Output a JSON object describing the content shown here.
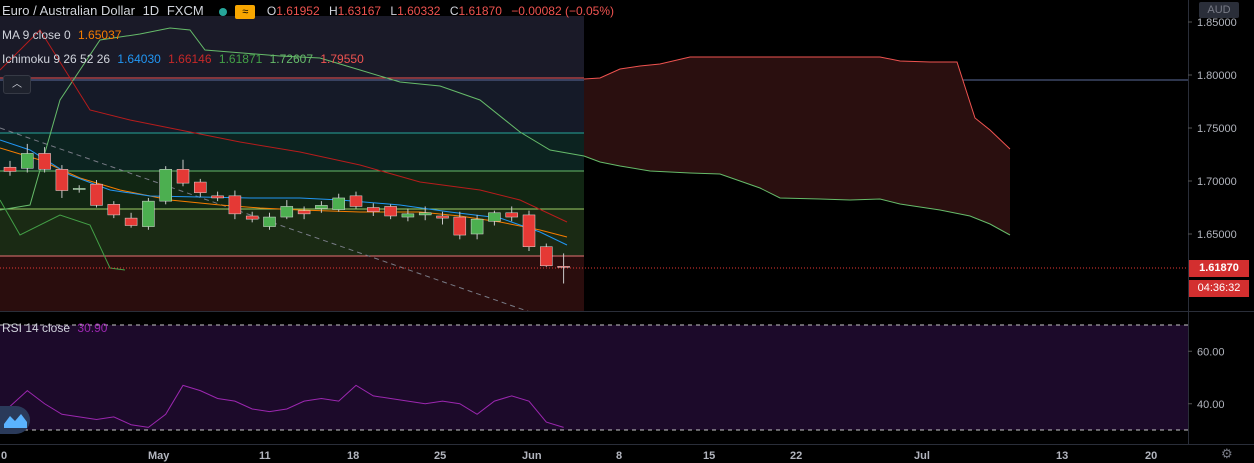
{
  "header": {
    "symbol": "Euro / Australian Dollar",
    "interval": "1D",
    "exchange": "FXCM",
    "ohlc": {
      "o_label": "O",
      "o": "1.61952",
      "h_label": "H",
      "h": "1.63167",
      "l_label": "L",
      "l": "1.60332",
      "c_label": "C",
      "c": "1.61870",
      "change": "−0.00082 (−0.05%)"
    }
  },
  "indicators": {
    "ma": {
      "label": "MA 9 close 0",
      "value": "1.65037",
      "color": "#f57c00"
    },
    "ichimoku": {
      "label": "Ichimoku 9 26 52 26",
      "values": [
        {
          "v": "1.64030",
          "color": "#2196f3"
        },
        {
          "v": "1.66146",
          "color": "#b71c1c"
        },
        {
          "v": "1.61871",
          "color": "#43a047"
        },
        {
          "v": "1.72607",
          "color": "#66bb6a"
        },
        {
          "v": "1.79550",
          "color": "#ef5350"
        }
      ]
    },
    "rsi": {
      "label": "RSI 14 close",
      "value": "30.90",
      "color": "#9c27b0"
    }
  },
  "price_axis": {
    "currency": "AUD",
    "labels": [
      "1.85000",
      "1.80000",
      "1.75000",
      "1.70000",
      "1.65000"
    ],
    "last_price": "1.61870",
    "countdown": "04:36:32"
  },
  "rsi_axis": {
    "labels": [
      "60.00",
      "40.00"
    ]
  },
  "time_axis": {
    "labels": [
      "0",
      "May",
      "11",
      "18",
      "25",
      "Jun",
      "8",
      "15",
      "22",
      "Jul",
      "13",
      "20"
    ]
  },
  "colors": {
    "up": "#4caf50",
    "down": "#e53935",
    "background": "#000000",
    "cloud_bear": "#f44336",
    "cloud_bull": "#4caf50",
    "rsi_band": "#2a0d3a"
  },
  "chart_data": [
    {
      "type": "candlestick",
      "series": [
        {
          "name": "EURAUD",
          "ohlc": [
            [
              1.713,
              1.719,
              1.705,
              1.709
            ],
            [
              1.712,
              1.735,
              1.708,
              1.726
            ],
            [
              1.726,
              1.732,
              1.708,
              1.711
            ],
            [
              1.711,
              1.715,
              1.684,
              1.691
            ],
            [
              1.692,
              1.696,
              1.689,
              1.693
            ],
            [
              1.697,
              1.701,
              1.675,
              1.677
            ],
            [
              1.678,
              1.681,
              1.665,
              1.668
            ],
            [
              1.665,
              1.67,
              1.656,
              1.658
            ],
            [
              1.657,
              1.684,
              1.654,
              1.681
            ],
            [
              1.681,
              1.714,
              1.678,
              1.711
            ],
            [
              1.711,
              1.72,
              1.695,
              1.698
            ],
            [
              1.699,
              1.702,
              1.685,
              1.689
            ],
            [
              1.686,
              1.69,
              1.681,
              1.684
            ],
            [
              1.686,
              1.691,
              1.664,
              1.669
            ],
            [
              1.667,
              1.671,
              1.661,
              1.664
            ],
            [
              1.657,
              1.67,
              1.654,
              1.666
            ],
            [
              1.666,
              1.682,
              1.664,
              1.676
            ],
            [
              1.672,
              1.676,
              1.664,
              1.669
            ],
            [
              1.674,
              1.681,
              1.67,
              1.677
            ],
            [
              1.673,
              1.688,
              1.671,
              1.684
            ],
            [
              1.686,
              1.69,
              1.674,
              1.676
            ],
            [
              1.675,
              1.679,
              1.667,
              1.671
            ],
            [
              1.676,
              1.678,
              1.664,
              1.667
            ],
            [
              1.666,
              1.674,
              1.662,
              1.669
            ],
            [
              1.668,
              1.676,
              1.663,
              1.67
            ],
            [
              1.667,
              1.671,
              1.659,
              1.665
            ],
            [
              1.666,
              1.671,
              1.645,
              1.649
            ],
            [
              1.65,
              1.668,
              1.645,
              1.664
            ],
            [
              1.662,
              1.672,
              1.658,
              1.67
            ],
            [
              1.67,
              1.676,
              1.662,
              1.666
            ],
            [
              1.668,
              1.672,
              1.634,
              1.638
            ],
            [
              1.638,
              1.641,
              1.619,
              1.62
            ],
            [
              1.6195,
              1.6317,
              1.6033,
              1.6187
            ]
          ]
        }
      ],
      "ylim": [
        1.58,
        1.86
      ]
    },
    {
      "type": "line",
      "series": [
        {
          "name": "RSI",
          "values": [
            39,
            45,
            40,
            36,
            35,
            34,
            35,
            32,
            31,
            36,
            47,
            45,
            42,
            41,
            38,
            37,
            38,
            41,
            42,
            41,
            47,
            43,
            42,
            41,
            40,
            41,
            40,
            36,
            41,
            43,
            41,
            33,
            31
          ]
        }
      ],
      "ylim": [
        25,
        75
      ]
    }
  ]
}
